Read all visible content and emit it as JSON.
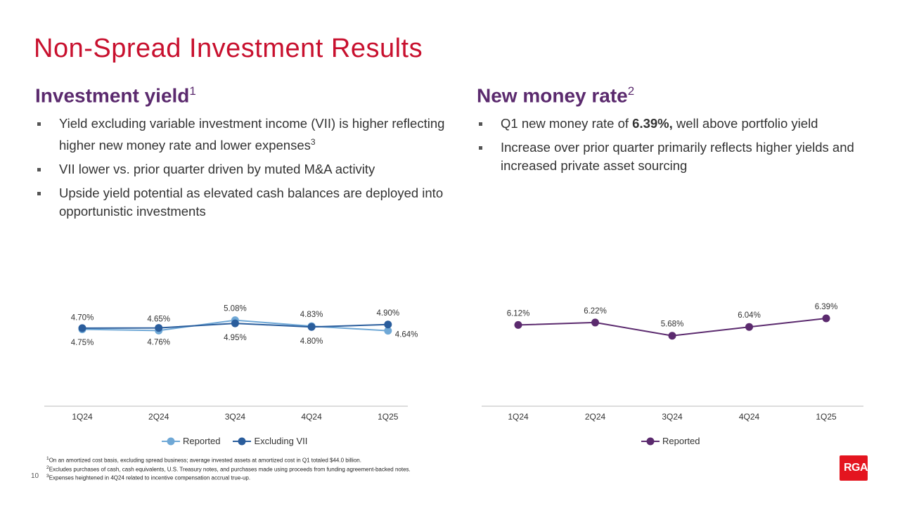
{
  "title": "Non-Spread Investment Results",
  "left": {
    "heading": "Investment yield",
    "heading_sup": "1",
    "bullets": [
      {
        "text": "Yield excluding variable investment income (VII) is higher reflecting higher new money rate and lower expenses",
        "sup": "3"
      },
      {
        "text": "VII lower vs. prior quarter driven by muted M&A activity"
      },
      {
        "text": "Upside yield potential as elevated cash balances are deployed into opportunistic investments"
      }
    ]
  },
  "right": {
    "heading": "New money rate",
    "heading_sup": "2",
    "bullets": [
      {
        "pre": "Q1 new money rate of ",
        "bold": "6.39%,",
        "post": " well above portfolio yield"
      },
      {
        "text": "Increase over prior quarter primarily reflects higher yields and increased private asset sourcing"
      }
    ]
  },
  "chart_data": [
    {
      "type": "line",
      "categories": [
        "1Q24",
        "2Q24",
        "3Q24",
        "4Q24",
        "1Q25"
      ],
      "series": [
        {
          "name": "Reported",
          "values": [
            4.7,
            4.65,
            5.08,
            4.83,
            4.64
          ],
          "labels": [
            "4.70%",
            "4.65%",
            "5.08%",
            "4.83%",
            "4.64%"
          ],
          "color": "#6fa8d6"
        },
        {
          "name": "Excluding VII",
          "values": [
            4.75,
            4.76,
            4.95,
            4.8,
            4.9
          ],
          "labels": [
            "4.75%",
            "4.76%",
            "4.95%",
            "4.80%",
            "4.90%"
          ],
          "color": "#2a5d9c"
        }
      ],
      "ylim": [
        1.5,
        7
      ],
      "grid": false,
      "legend": "bottom"
    },
    {
      "type": "line",
      "categories": [
        "1Q24",
        "2Q24",
        "3Q24",
        "4Q24",
        "1Q25"
      ],
      "series": [
        {
          "name": "Reported",
          "values": [
            6.12,
            6.22,
            5.68,
            6.04,
            6.39
          ],
          "labels": [
            "6.12%",
            "6.22%",
            "5.68%",
            "6.04%",
            "6.39%"
          ],
          "color": "#5b2a6e"
        }
      ],
      "ylim": [
        2.8,
        8.2
      ],
      "grid": false,
      "legend": "bottom"
    }
  ],
  "footnotes": [
    {
      "sup": "1",
      "text": "On an amortized cost basis, excluding spread business; average invested assets at amortized cost in Q1 totaled $44.0 billion."
    },
    {
      "sup": "2",
      "text": "Excludes purchases of cash, cash equivalents, U.S. Treasury notes, and purchases made using proceeds from funding agreement-backed notes."
    },
    {
      "sup": "3",
      "text": "Expenses heightened in 4Q24 related to incentive compensation accrual true-up."
    }
  ],
  "page_number": "10",
  "logo": "RGA"
}
